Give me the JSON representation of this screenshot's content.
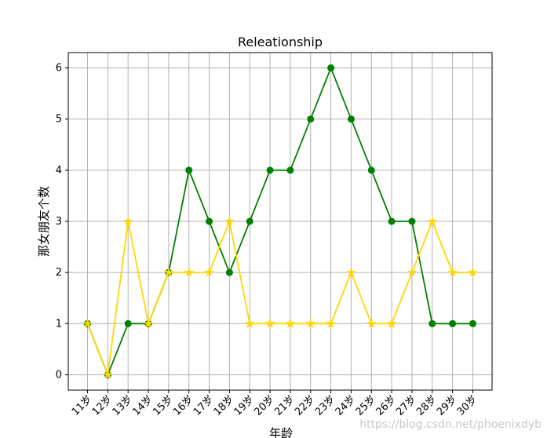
{
  "chart_data": {
    "type": "line",
    "title": "Releationship",
    "x_label": "年龄",
    "y_label": "那女朋友个数",
    "categories": [
      "11岁",
      "12岁",
      "13岁",
      "14岁",
      "15岁",
      "16岁",
      "17岁",
      "18岁",
      "19岁",
      "20岁",
      "21岁",
      "22岁",
      "23岁",
      "24岁",
      "25岁",
      "26岁",
      "27岁",
      "28岁",
      "29岁",
      "30岁"
    ],
    "series": [
      {
        "color": "#008000",
        "marker": "circle",
        "values": [
          1,
          0,
          1,
          1,
          2,
          4,
          3,
          2,
          3,
          4,
          4,
          5,
          6,
          5,
          4,
          3,
          3,
          1,
          1,
          1
        ]
      },
      {
        "color": "#ffd700",
        "marker": "star",
        "values": [
          1,
          0,
          3,
          1,
          2,
          2,
          2,
          3,
          1,
          1,
          1,
          1,
          1,
          2,
          1,
          1,
          2,
          3,
          2,
          2
        ]
      }
    ],
    "ylim": [
      -0.3,
      6.3
    ],
    "yticks": [
      0,
      1,
      2,
      3,
      4,
      5,
      6
    ],
    "grid": true,
    "watermark": "https://blog.csdn.net/phoenixdyb"
  }
}
